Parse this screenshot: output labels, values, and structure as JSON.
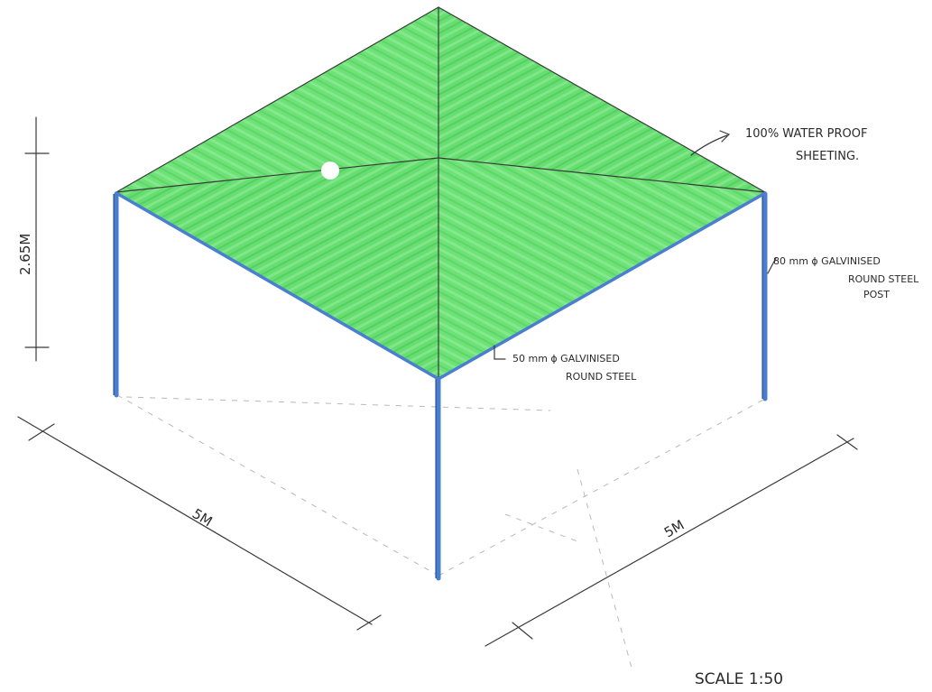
{
  "drawing": {
    "height_dim": "2.65M",
    "sheeting_note": [
      "100% WATER PROOF",
      "SHEETING."
    ],
    "post_note": [
      "80 mm ϕ GALVINISED",
      "ROUND STEEL",
      "POST"
    ],
    "rafter_note": [
      "50 mm ϕ GALVINISED",
      "ROUND STEEL"
    ],
    "width_left": "5M",
    "width_right": "5M",
    "scale": "SCALE 1:50"
  },
  "colors": {
    "sheeting": "#5fe06a",
    "sheeting_shade": "#4fcf5c",
    "steel": "#4a7fd0",
    "pencil": "#3a3a3a"
  }
}
